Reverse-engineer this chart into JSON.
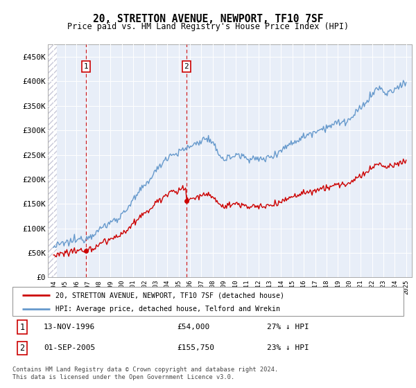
{
  "title": "20, STRETTON AVENUE, NEWPORT, TF10 7SF",
  "subtitle": "Price paid vs. HM Land Registry's House Price Index (HPI)",
  "legend_line1": "20, STRETTON AVENUE, NEWPORT, TF10 7SF (detached house)",
  "legend_line2": "HPI: Average price, detached house, Telford and Wrekin",
  "sale1_date": "13-NOV-1996",
  "sale1_price": 54000,
  "sale1_label": "27% ↓ HPI",
  "sale2_date": "01-SEP-2005",
  "sale2_price": 155750,
  "sale2_label": "23% ↓ HPI",
  "footer": "Contains HM Land Registry data © Crown copyright and database right 2024.\nThis data is licensed under the Open Government Licence v3.0.",
  "ylim": [
    0,
    475000
  ],
  "yticks": [
    0,
    50000,
    100000,
    150000,
    200000,
    250000,
    300000,
    350000,
    400000,
    450000
  ],
  "ytick_labels": [
    "£0",
    "£50K",
    "£100K",
    "£150K",
    "£200K",
    "£250K",
    "£300K",
    "£350K",
    "£400K",
    "£450K"
  ],
  "hpi_color": "#6699cc",
  "price_color": "#cc0000",
  "sale1_x": 1996.87,
  "sale2_x": 2005.67,
  "plot_bg": "#e8eef8",
  "grid_color": "#ffffff",
  "hatch_color": "#c8c8d8"
}
